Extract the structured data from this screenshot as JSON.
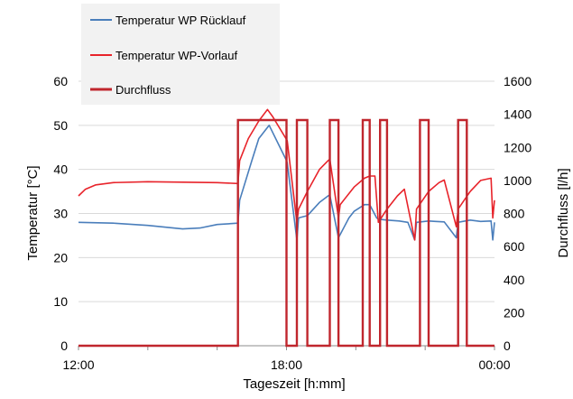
{
  "chart_data": {
    "type": "line",
    "xlabel": "Tageszeit [h:mm]",
    "ylabel": "Temperatur [°C]",
    "y2label": "Durchfluss [l/h]",
    "x_ticks": [
      "12:00",
      "18:00",
      "00:00"
    ],
    "x_hours": [
      12,
      24
    ],
    "ylim": [
      0,
      60
    ],
    "y_ticks": [
      0,
      10,
      20,
      30,
      40,
      50,
      60
    ],
    "y2lim": [
      0,
      1600
    ],
    "y2_ticks": [
      0,
      200,
      400,
      600,
      800,
      1000,
      1200,
      1400,
      1600
    ],
    "grid": "horizontal",
    "legend_position": "top-left",
    "series": [
      {
        "name": "Temperatur WP Rücklauf",
        "color": "#4a7ebb",
        "axis": "left",
        "x": [
          12.0,
          13.0,
          14.0,
          15.0,
          15.5,
          16.0,
          16.6,
          16.65,
          17.0,
          17.2,
          17.5,
          18.0,
          18.02,
          18.3,
          18.35,
          18.6,
          18.95,
          19.2,
          19.25,
          19.5,
          19.8,
          19.95,
          20.25,
          20.4,
          20.6,
          20.65,
          20.9,
          21.25,
          21.5,
          21.7,
          21.75,
          22.1,
          22.3,
          22.55,
          22.9,
          22.95,
          23.3,
          23.6,
          23.9,
          23.95,
          24.0
        ],
        "y": [
          28,
          27.8,
          27.3,
          26.5,
          26.7,
          27.5,
          27.8,
          33,
          42,
          47,
          50,
          42,
          41.5,
          24,
          29,
          29.5,
          32.5,
          34,
          34.2,
          24.5,
          29,
          30.5,
          32,
          32,
          29,
          28.7,
          28.5,
          28.3,
          28,
          24,
          28,
          28.3,
          28.2,
          28.1,
          24.5,
          28,
          28.5,
          28.2,
          28.3,
          24,
          28
        ]
      },
      {
        "name": "Temperatur WP-Vorlauf",
        "color": "#e8232a",
        "axis": "left",
        "x": [
          12.0,
          12.2,
          12.5,
          13.0,
          14.0,
          15.0,
          16.0,
          16.6,
          16.65,
          16.9,
          17.2,
          17.45,
          17.6,
          18.0,
          18.02,
          18.3,
          18.35,
          18.6,
          18.95,
          19.2,
          19.25,
          19.5,
          19.55,
          19.95,
          20.25,
          20.4,
          20.55,
          20.65,
          20.9,
          21.2,
          21.4,
          21.7,
          21.75,
          22.1,
          22.4,
          22.55,
          22.9,
          22.95,
          23.3,
          23.6,
          23.9,
          23.95,
          24.0
        ],
        "y": [
          34,
          35.5,
          36.5,
          37,
          37.2,
          37.1,
          37,
          36.8,
          42,
          47,
          51,
          53.6,
          52,
          46.8,
          46.5,
          28,
          31,
          35,
          40,
          42,
          42.3,
          29,
          32,
          36,
          38,
          38.5,
          38.5,
          28,
          31,
          34,
          35.5,
          24,
          31,
          35,
          37,
          37.6,
          27,
          31,
          35,
          37.5,
          38,
          29,
          33
        ]
      },
      {
        "name": "Durchfluss",
        "color": "#c0262d",
        "axis": "right",
        "segments": [
          {
            "on": 16.6,
            "off": 18.0
          },
          {
            "on": 18.3,
            "off": 18.6
          },
          {
            "on": 19.25,
            "off": 19.5
          },
          {
            "on": 20.2,
            "off": 20.4
          },
          {
            "on": 20.7,
            "off": 20.9
          },
          {
            "on": 21.85,
            "off": 22.1
          },
          {
            "on": 22.95,
            "off": 23.2
          }
        ],
        "on_value": 1365,
        "off_value": 0
      }
    ]
  }
}
